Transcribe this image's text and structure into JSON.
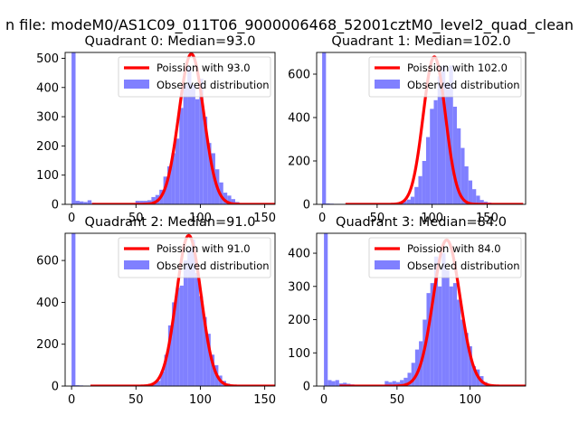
{
  "figure": {
    "suptitle": "n file: modeM0/AS1C09_011T06_9000006468_52001cztM0_level2_quad_clean"
  },
  "chart_data": [
    {
      "type": "bar",
      "title": "Quadrant 0: Median=93.0",
      "xlim": [
        -5,
        158
      ],
      "ylim": [
        0,
        520
      ],
      "xticks": [
        0,
        50,
        100,
        150
      ],
      "yticks": [
        0,
        100,
        200,
        300,
        400,
        500
      ],
      "legend": "top-right",
      "fit_label": "Poission with 93.0",
      "hist_label": "Observed distribution",
      "fit_color": "#ff0000",
      "hist_color": "#8080ff",
      "mean": 93.0,
      "peak": 515,
      "bin_width": 3.1,
      "bins_x": [
        0,
        3.1,
        6.2,
        9.3,
        12.4,
        15.5,
        18.6,
        21.7,
        24.8,
        27.9,
        31,
        34.1,
        37.2,
        40.3,
        43.4,
        46.5,
        49.6,
        52.7,
        55.8,
        58.9,
        62,
        65.1,
        68.2,
        71.3,
        74.4,
        77.5,
        80.6,
        83.7,
        86.8,
        89.9,
        93,
        96.1,
        99.2,
        102.3,
        105.4,
        108.5,
        111.6,
        114.7,
        117.8,
        120.9,
        124,
        127.1,
        130.2
      ],
      "counts": [
        520,
        12,
        10,
        8,
        14,
        5,
        3,
        4,
        3,
        2,
        2,
        2,
        2,
        2,
        1,
        1,
        12,
        12,
        12,
        14,
        25,
        32,
        50,
        95,
        130,
        175,
        225,
        330,
        410,
        470,
        410,
        360,
        430,
        300,
        210,
        175,
        120,
        75,
        40,
        30,
        18,
        8,
        4
      ]
    },
    {
      "type": "bar",
      "title": "Quadrant 1: Median=102.0",
      "xlim": [
        -5,
        185
      ],
      "ylim": [
        0,
        700
      ],
      "xticks": [
        0,
        50,
        100,
        150
      ],
      "yticks": [
        0,
        200,
        400,
        600
      ],
      "legend": "top-right",
      "fit_label": "Poission with 102.0",
      "hist_label": "Observed distribution",
      "fit_color": "#ff0000",
      "hist_color": "#8080ff",
      "mean": 102.0,
      "peak": 680,
      "bin_width": 3.5,
      "bins_x": [
        0,
        3.5,
        7,
        10.5,
        14,
        17.5,
        21,
        24.5,
        28,
        31.5,
        35,
        38.5,
        42,
        45.5,
        49,
        52.5,
        56,
        59.5,
        63,
        66.5,
        70,
        73.5,
        77,
        80.5,
        84,
        87.5,
        91,
        94.5,
        98,
        101.5,
        105,
        108.5,
        112,
        115.5,
        119,
        122.5,
        126,
        129.5,
        133,
        136.5,
        140,
        143.5,
        147,
        150.5
      ],
      "counts": [
        700,
        4,
        3,
        2,
        2,
        2,
        2,
        1,
        1,
        1,
        1,
        1,
        1,
        1,
        1,
        1,
        1,
        2,
        3,
        5,
        8,
        15,
        22,
        35,
        80,
        130,
        200,
        310,
        440,
        480,
        590,
        640,
        560,
        640,
        450,
        350,
        260,
        175,
        110,
        70,
        40,
        20,
        12,
        8
      ]
    },
    {
      "type": "bar",
      "title": "Quadrant 2: Median=91.0",
      "xlim": [
        -5,
        158
      ],
      "ylim": [
        0,
        730
      ],
      "xticks": [
        0,
        50,
        100,
        150
      ],
      "yticks": [
        0,
        200,
        400,
        600
      ],
      "legend": "top-right",
      "fit_label": "Poission with 91.0",
      "hist_label": "Observed distribution",
      "fit_color": "#ff0000",
      "hist_color": "#8080ff",
      "mean": 91.0,
      "peak": 720,
      "bin_width": 3.0,
      "bins_x": [
        0,
        3,
        6,
        9,
        12,
        15,
        18,
        21,
        24,
        27,
        30,
        33,
        36,
        39,
        42,
        45,
        48,
        51,
        54,
        57,
        60,
        63,
        66,
        69,
        72,
        75,
        78,
        81,
        84,
        87,
        90,
        93,
        96,
        99,
        102,
        105,
        108,
        111,
        114,
        117,
        120,
        123,
        126
      ],
      "counts": [
        730,
        4,
        3,
        2,
        2,
        1,
        1,
        1,
        1,
        1,
        1,
        1,
        1,
        1,
        1,
        1,
        1,
        1,
        2,
        3,
        8,
        15,
        25,
        70,
        150,
        290,
        400,
        470,
        480,
        600,
        650,
        700,
        540,
        430,
        330,
        250,
        150,
        100,
        50,
        25,
        12,
        6,
        3
      ]
    },
    {
      "type": "bar",
      "title": "Quadrant 3: Median=84.0",
      "xlim": [
        -5,
        138
      ],
      "ylim": [
        0,
        460
      ],
      "xticks": [
        0,
        50,
        100
      ],
      "yticks": [
        0,
        100,
        200,
        300,
        400
      ],
      "legend": "top-right",
      "fit_label": "Poission with 84.0",
      "hist_label": "Observed distribution",
      "fit_color": "#ff0000",
      "hist_color": "#8080ff",
      "mean": 84.0,
      "peak": 440,
      "bin_width": 2.6,
      "bins_x": [
        0,
        2.6,
        5.2,
        7.8,
        10.4,
        13,
        15.6,
        18.2,
        20.8,
        23.4,
        26,
        28.6,
        31.2,
        33.8,
        36.4,
        39,
        41.6,
        44.2,
        46.8,
        49.4,
        52,
        54.6,
        57.2,
        59.8,
        62.4,
        65,
        67.6,
        70.2,
        72.8,
        75.4,
        78,
        80.6,
        83.2,
        85.8,
        88.4,
        91,
        93.6,
        96.2,
        98.8,
        101.4,
        104,
        106.6,
        109.2,
        111.8
      ],
      "counts": [
        460,
        18,
        15,
        18,
        8,
        10,
        7,
        5,
        4,
        3,
        3,
        3,
        4,
        4,
        3,
        3,
        15,
        12,
        15,
        12,
        18,
        25,
        40,
        70,
        110,
        135,
        200,
        280,
        310,
        390,
        300,
        400,
        350,
        300,
        310,
        260,
        200,
        160,
        120,
        60,
        50,
        30,
        12,
        5
      ]
    }
  ]
}
